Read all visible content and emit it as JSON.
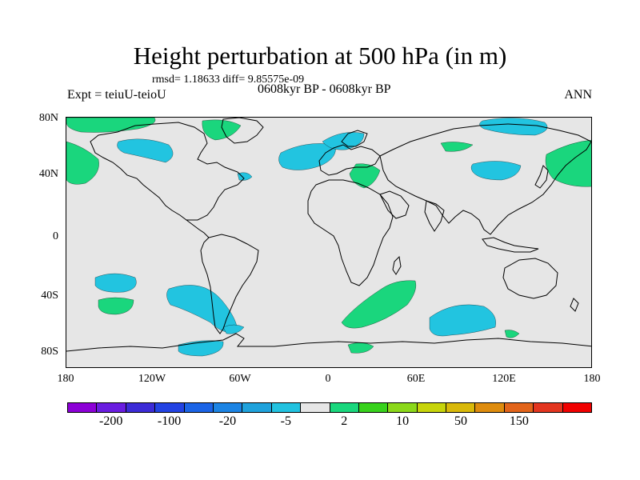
{
  "header": {
    "title": "Height perturbation at 500 hPa (in m)",
    "stats": "rmsd= 1.18633 diff= 9.85575e-09",
    "expt": "Expt = teiuU-teioU",
    "period": "0608kyr BP - 0608kyr BP",
    "season": "ANN"
  },
  "axes": {
    "lat_labels": [
      "80N",
      "40N",
      "0",
      "40S",
      "80S"
    ],
    "lon_labels": [
      "180",
      "120W",
      "60W",
      "0",
      "60E",
      "120E",
      "180"
    ]
  },
  "colorbar": {
    "colors": [
      "#8c00d7",
      "#6a1de0",
      "#3c2bd7",
      "#2343e3",
      "#1b64e6",
      "#1c84e4",
      "#1fa2dc",
      "#22c2e0",
      "#e6e6e6",
      "#19d77d",
      "#37d21c",
      "#8bd81a",
      "#c7d40b",
      "#d9b90a",
      "#de8c0e",
      "#e2641a",
      "#e3351f",
      "#f00000"
    ],
    "labels": [
      "-200",
      "-100",
      "-20",
      "-5",
      "2",
      "10",
      "50",
      "150"
    ]
  },
  "field": {
    "cyan": "#22c4e0",
    "green": "#1ad67d"
  }
}
